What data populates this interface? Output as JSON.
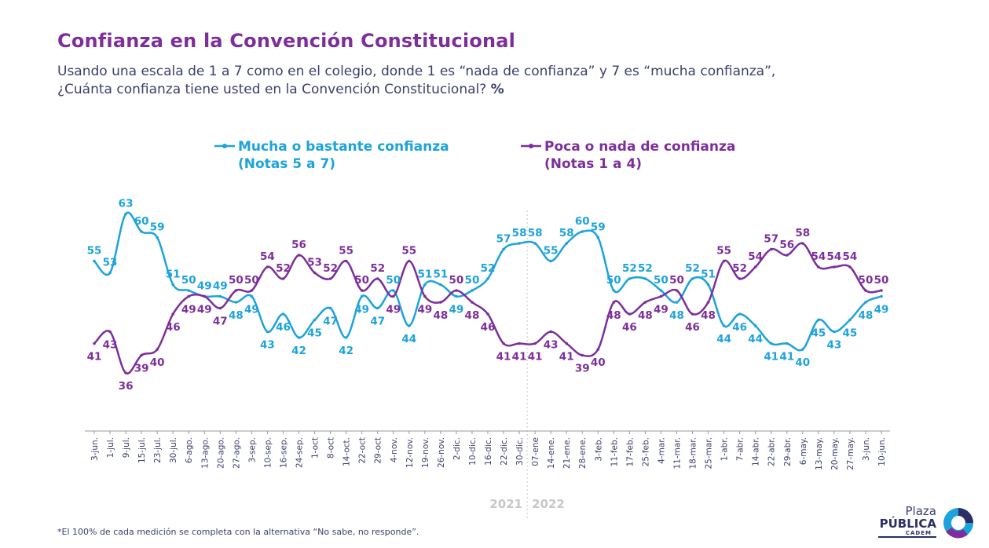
{
  "header": {
    "title": "Confianza en la Convención Constitucional",
    "subtitle_line1": "Usando una escala de 1 a 7 como en el colegio, donde 1 es “nada de confianza” y 7 es “mucha confianza”,",
    "subtitle_line2": "¿Cuánta confianza tiene usted en la Convención Constitucional?",
    "subtitle_unit": "%"
  },
  "footnote": "*El 100% de cada medición se completa con la alternativa “No sabe, no responde”.",
  "logo": {
    "line1": "Plaza",
    "line2": "PÚBLICA",
    "line3": "CADEM"
  },
  "colors": {
    "title": "#7d2e9b",
    "series_high": "#1ca3db",
    "series_low": "#7d2e9b",
    "text": "#3a3f6b",
    "year_labels": "#c8c8c8"
  },
  "chart_data": {
    "type": "line",
    "x": [
      "3-jun.",
      "1-jul.",
      "9-jul.",
      "15-jul.",
      "23-jul.",
      "30-jul.",
      "6-ago.",
      "13-ago.",
      "20-ago.",
      "27-ago.",
      "3-sep.",
      "10-sep.",
      "16-sep.",
      "24-sep.",
      "1-oct",
      "8-oct",
      "14-oct.",
      "22-oct",
      "29-oct",
      "4-nov.",
      "12-nov.",
      "19-nov.",
      "26-nov.",
      "2-dic.",
      "10-dic.",
      "16-dic.",
      "22-dic.",
      "30-dic.",
      "07-ene",
      "14-ene.",
      "21-ene.",
      "28-ene.",
      "3-feb.",
      "11-feb.",
      "17-feb.",
      "25-feb.",
      "4-mar.",
      "11-mar.",
      "18-mar.",
      "25-mar.",
      "1-abr.",
      "7-abr.",
      "14-abr.",
      "22-abr.",
      "29-abr.",
      "6-may.",
      "13-may.",
      "20-may.",
      "27-may.",
      "3-jun.",
      "10-jun."
    ],
    "series": [
      {
        "name": "Mucha o bastante confianza",
        "name_note": "(Notas 5 a 7)",
        "values": [
          55,
          53,
          63,
          60,
          59,
          51,
          50,
          49,
          49,
          48,
          49,
          43,
          46,
          42,
          45,
          47,
          42,
          49,
          47,
          50,
          44,
          51,
          51,
          49,
          50,
          52,
          57,
          58,
          58,
          55,
          58,
          60,
          59,
          50,
          52,
          52,
          50,
          48,
          52,
          51,
          44,
          46,
          44,
          41,
          41,
          40,
          45,
          43,
          45,
          48,
          49
        ]
      },
      {
        "name": "Poca o nada de confianza",
        "name_note": "(Notas 1 a 4)",
        "values": [
          41,
          43,
          36,
          39,
          40,
          46,
          49,
          49,
          47,
          50,
          50,
          54,
          52,
          56,
          53,
          52,
          55,
          50,
          52,
          49,
          55,
          49,
          48,
          50,
          48,
          46,
          41,
          41,
          41,
          43,
          41,
          39,
          40,
          48,
          46,
          48,
          49,
          50,
          46,
          48,
          55,
          52,
          54,
          57,
          56,
          58,
          54,
          54,
          54,
          50,
          50
        ]
      }
    ],
    "year_labels": [
      "2021",
      "2022"
    ],
    "year_divider_after_index": 27,
    "ylim": [
      30,
      70
    ],
    "grid": false,
    "legend_position": "top",
    "data_labels": true
  }
}
